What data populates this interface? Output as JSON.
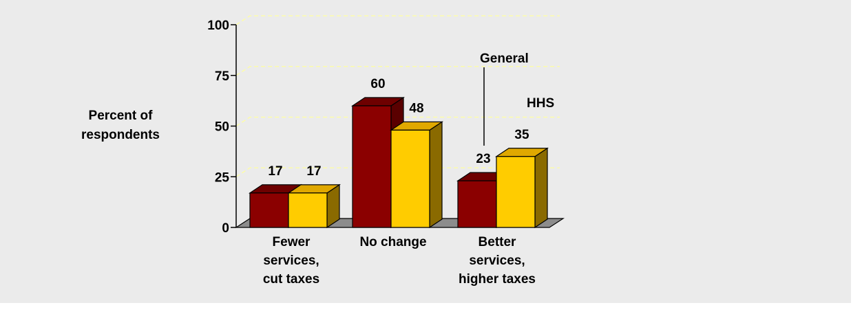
{
  "chart_data": {
    "type": "bar",
    "ylabel_lines": [
      "Percent of",
      "respondents"
    ],
    "ylim": [
      0,
      100
    ],
    "yticks": [
      "0",
      "25",
      "50",
      "75",
      "100"
    ],
    "categories": [
      [
        "Fewer",
        "services,",
        "cut taxes"
      ],
      [
        "No change"
      ],
      [
        "Better",
        "services,",
        "higher taxes"
      ]
    ],
    "series": [
      {
        "name": "General",
        "values": [
          17,
          60,
          23
        ],
        "color": "#8b0000"
      },
      {
        "name": "HHS",
        "values": [
          17,
          48,
          35
        ],
        "color": "#ffcc00"
      }
    ],
    "grid": true,
    "grid_style": "dashed yellow",
    "style": "3d"
  }
}
